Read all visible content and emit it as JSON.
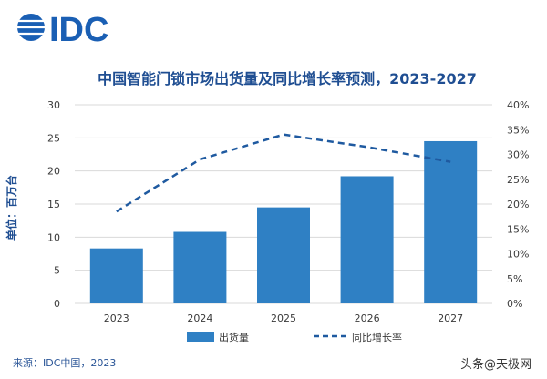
{
  "logo": {
    "text": "IDC"
  },
  "chart_data": {
    "type": "bar",
    "title": "中国智能门锁市场出货量及同比增长率预测，2023-2027",
    "categories": [
      "2023",
      "2024",
      "2025",
      "2026",
      "2027"
    ],
    "series": [
      {
        "name": "出货量",
        "kind": "bar",
        "axis": "left",
        "color": "#2f80c4",
        "values": [
          8.3,
          10.8,
          14.5,
          19.2,
          24.5
        ]
      },
      {
        "name": "同比增长率",
        "kind": "line",
        "axis": "right",
        "style": "dashed",
        "color": "#1f5aa0",
        "values": [
          18.5,
          29.0,
          34.0,
          31.5,
          28.5
        ]
      }
    ],
    "ylabel": "单位：百万台",
    "ylim": [
      0,
      30
    ],
    "y_ticks": [
      "0",
      "5",
      "10",
      "15",
      "20",
      "25",
      "30"
    ],
    "y2lim": [
      0,
      40
    ],
    "y2_ticks": [
      "0%",
      "5%",
      "10%",
      "15%",
      "20%",
      "25%",
      "30%",
      "35%",
      "40%"
    ],
    "grid": true,
    "legend": "bottom"
  },
  "source": "来源：IDC中国，2023",
  "watermark": "头条@天极网",
  "colors": {
    "bar": "#2f80c4",
    "line": "#1f5aa0",
    "title": "#1f4e92",
    "grid": "#d9d9d9"
  }
}
